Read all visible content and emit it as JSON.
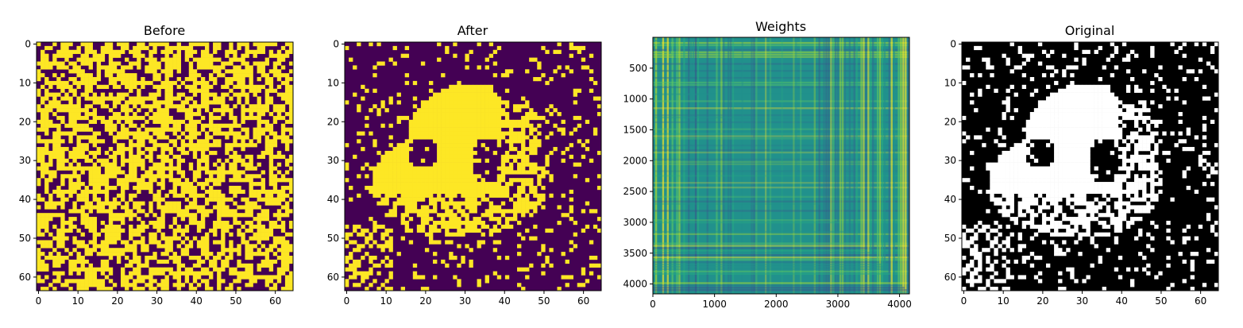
{
  "chart_data": [
    {
      "type": "heatmap",
      "title": "Before",
      "colormap": "viridis-binary",
      "grid_size": [
        64,
        64
      ],
      "xlim": [
        -0.5,
        64.5
      ],
      "ylim": [
        63.5,
        -0.5
      ],
      "x_ticks": [
        0,
        10,
        20,
        30,
        40,
        50,
        60
      ],
      "y_ticks": [
        0,
        10,
        20,
        30,
        40,
        50,
        60
      ],
      "content": "noisy binary pattern (~60% yellow)"
    },
    {
      "type": "heatmap",
      "title": "After",
      "colormap": "viridis-binary",
      "grid_size": [
        64,
        64
      ],
      "xlim": [
        -0.5,
        64.5
      ],
      "ylim": [
        63.5,
        -0.5
      ],
      "x_ticks": [
        0,
        10,
        20,
        30,
        40,
        50,
        60
      ],
      "y_ticks": [
        0,
        10,
        20,
        30,
        40,
        50,
        60
      ],
      "content": "recovered panda-like binary image"
    },
    {
      "type": "heatmap",
      "title": "Weights",
      "colormap": "viridis",
      "grid_size": [
        4160,
        4160
      ],
      "xlim": [
        0,
        4160
      ],
      "ylim": [
        4160,
        0
      ],
      "x_ticks": [
        0,
        1000,
        2000,
        3000,
        4000
      ],
      "y_ticks": [
        500,
        1000,
        1500,
        2000,
        2500,
        3000,
        3500,
        4000
      ],
      "content": "striped weight matrix"
    },
    {
      "type": "heatmap",
      "title": "Original",
      "colormap": "gray",
      "grid_size": [
        64,
        64
      ],
      "xlim": [
        -0.5,
        64.5
      ],
      "ylim": [
        63.5,
        -0.5
      ],
      "x_ticks": [
        0,
        10,
        20,
        30,
        40,
        50,
        60
      ],
      "y_ticks": [
        0,
        10,
        20,
        30,
        40,
        50,
        60
      ],
      "content": "original panda-like binary image"
    }
  ],
  "colors": {
    "purple": "#440154",
    "yellow": "#fde725",
    "teal": "#21918c",
    "black": "#000000",
    "white": "#ffffff"
  }
}
